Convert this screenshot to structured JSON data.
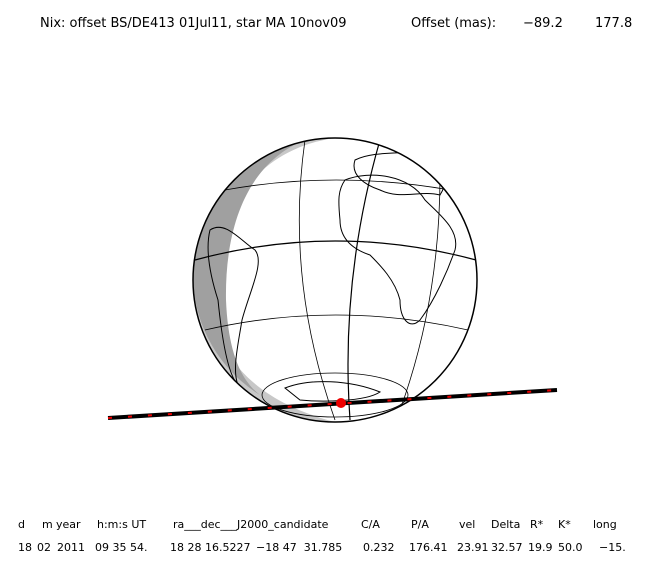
{
  "header": {
    "title": "Nix: offset BS/DE413 01Jul11, star MA 10nov09",
    "offset_label": "Offset (mas):",
    "offset_values": [
      "−89.2",
      "177.8"
    ]
  },
  "table": {
    "headers": [
      "d",
      "m",
      "year",
      "h:m:s UT",
      "ra___dec___J2000_candidate",
      "C/A",
      "P/A",
      "vel",
      "Delta",
      "R*",
      "K*",
      "long"
    ],
    "rows": [
      [
        "18",
        "02",
        "2011",
        "09 35 54.",
        "18 28 16.5227",
        "−18 47  31.785",
        "0.232",
        "176.41",
        "23.91",
        "32.57",
        "19.9",
        "50.0",
        "−15."
      ]
    ]
  }
}
